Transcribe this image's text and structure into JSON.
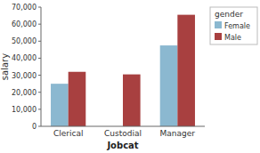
{
  "chart_data": {
    "type": "bar",
    "categories": [
      "Clerical",
      "Custodial",
      "Manager"
    ],
    "series": [
      {
        "name": "Female",
        "color": "#8BB8D0",
        "values": [
          25000,
          0,
          47500
        ]
      },
      {
        "name": "Male",
        "color": "#A84040",
        "values": [
          32000,
          30500,
          65500
        ]
      }
    ],
    "xlabel": "Jobcat",
    "ylabel": "salary",
    "ylim": [
      0,
      70000
    ],
    "yticks": [
      0,
      {
        "value": 10000,
        "label": "10,000"
      },
      {
        "value": 20000,
        "label": "20,000"
      },
      {
        "value": 30000,
        "label": "30,000"
      },
      {
        "value": 40000,
        "label": "40,000"
      },
      {
        "value": 50000,
        "label": "50,000"
      },
      {
        "value": 60000,
        "label": "60,000"
      },
      {
        "value": 70000,
        "label": "70,000"
      }
    ],
    "grid": false,
    "legend": "upper right",
    "legend_title": "gender"
  }
}
